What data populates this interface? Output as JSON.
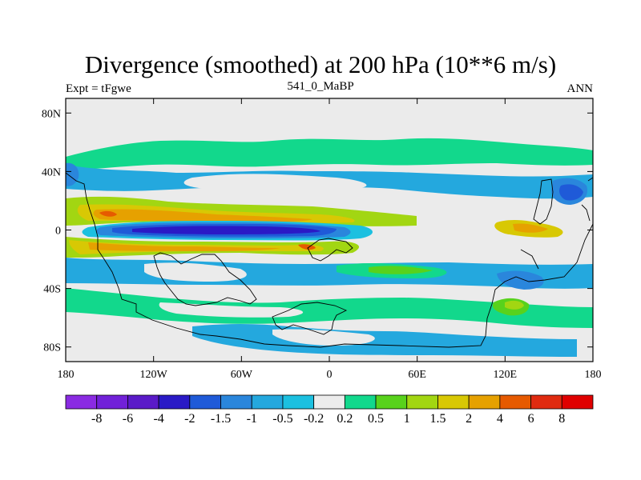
{
  "header": {
    "title": "Divergence (smoothed) at 200 hPa (10**6 m/s)",
    "left_string": "Expt = tFgwe",
    "center_string": "541_0_MaBP",
    "right_string": "ANN"
  },
  "chart_data": {
    "type": "heatmap",
    "title": "Divergence (smoothed) at 200 hPa (10**6 m/s)",
    "subtitle": "541_0_MaBP",
    "xlim": [
      -180,
      180
    ],
    "ylim": [
      -90,
      90
    ],
    "x_ticks": [
      {
        "value": -180,
        "label": "180"
      },
      {
        "value": -120,
        "label": "120W"
      },
      {
        "value": -60,
        "label": "60W"
      },
      {
        "value": 0,
        "label": "0"
      },
      {
        "value": 60,
        "label": "60E"
      },
      {
        "value": 120,
        "label": "120E"
      },
      {
        "value": 180,
        "label": "180"
      }
    ],
    "y_ticks": [
      {
        "value": 80,
        "label": "80N"
      },
      {
        "value": 40,
        "label": "40N"
      },
      {
        "value": 0,
        "label": "0"
      },
      {
        "value": -40,
        "label": "40S"
      },
      {
        "value": -80,
        "label": "80S"
      }
    ],
    "colorbar": {
      "labels": [
        "-8",
        "-6",
        "-4",
        "-2",
        "-1.5",
        "-1",
        "-0.5",
        "-0.2",
        "0.2",
        "0.5",
        "1",
        "1.5",
        "2",
        "4",
        "6",
        "8"
      ],
      "colors": [
        "#8a2be2",
        "#7121d8",
        "#5a1ac8",
        "#2a1ac6",
        "#1f5ad8",
        "#2a86dc",
        "#24a8de",
        "#1cc0e0",
        "#ececec",
        "#12d88c",
        "#58d21c",
        "#a2d612",
        "#d8c804",
        "#e6a100",
        "#e65a00",
        "#e02b10",
        "#e00000"
      ]
    },
    "fields": [
      {
        "desc": "equatorial Pacific convergence band",
        "lon": [
          -150,
          -20
        ],
        "lat": [
          -8,
          6
        ],
        "value": -4
      },
      {
        "desc": "flanking divergence north of equator",
        "lon": [
          -155,
          -70
        ],
        "lat": [
          8,
          14
        ],
        "value": 4
      },
      {
        "desc": "flanking divergence south of equator",
        "lon": [
          -150,
          -70
        ],
        "lat": [
          -18,
          -10
        ],
        "value": 4
      },
      {
        "desc": "western Pacific convergence",
        "lon": [
          150,
          170
        ],
        "lat": [
          20,
          35
        ],
        "value": -1.5
      },
      {
        "desc": "northern midlatitude divergence band",
        "lon": [
          -170,
          180
        ],
        "lat": [
          45,
          55
        ],
        "value": 0.5
      },
      {
        "desc": "southern ocean convergence",
        "lon": [
          -80,
          150
        ],
        "lat": [
          -50,
          -40
        ],
        "value": -1
      }
    ]
  }
}
